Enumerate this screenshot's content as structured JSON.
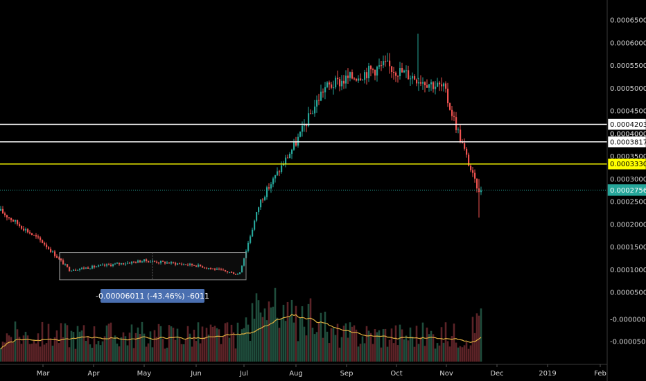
{
  "chart_data": {
    "type": "candlestick",
    "y_axis": {
      "position": "right",
      "range": [
        -6.5e-06,
        0.00068
      ],
      "tick_values": [
        0.00065,
        0.0006,
        0.00055,
        0.0005,
        0.00045,
        0.0004,
        0.00035,
        0.0003,
        0.00025,
        0.0002,
        0.00015,
        0.0001,
        5e-05
      ],
      "tick_labels": [
        "0.00065000",
        "0.00060000",
        "0.00055000",
        "0.00050000",
        "0.00045000",
        "0.00040000",
        "0.00035000",
        "0.00030000",
        "0.00025000",
        "0.00020000",
        "0.00015000",
        "0.00010000",
        "0.00005000"
      ],
      "volume_tick_labels": [
        "-0.00000000",
        "-0.00005000"
      ]
    },
    "x_axis": {
      "tick_labels": [
        "Mar",
        "Apr",
        "May",
        "Jun",
        "Jul",
        "Aug",
        "Sep",
        "Oct",
        "Nov",
        "Dec",
        "2019",
        "Feb"
      ]
    },
    "price_points": [
      {
        "month": "Feb",
        "price": 0.00023
      },
      {
        "month": "Mar",
        "price": 0.00016
      },
      {
        "month": "Apr",
        "price": 0.0001
      },
      {
        "month": "May",
        "price": 0.00012
      },
      {
        "month": "Jun",
        "price": 0.00011
      },
      {
        "month": "Jul",
        "price": 9e-05
      },
      {
        "month": "Jul",
        "price": 0.00025
      },
      {
        "month": "Aug",
        "price": 0.00038
      },
      {
        "month": "Aug",
        "price": 0.0005
      },
      {
        "month": "Sep",
        "price": 0.00052
      },
      {
        "month": "Oct",
        "price": 0.00055
      },
      {
        "month": "Nov",
        "price": 0.0005
      },
      {
        "month": "Nov",
        "price": 0.00027
      }
    ],
    "horizontal_levels": [
      {
        "label": "0.00042036",
        "value": 0.00042036,
        "color": "#ffffff",
        "style": "solid"
      },
      {
        "label": "0.00038179",
        "value": 0.00038179,
        "color": "#ffffff",
        "style": "solid"
      },
      {
        "label": "0.00033303",
        "value": 0.00033303,
        "color": "#ffff00",
        "style": "solid"
      },
      {
        "label": "0.00027560",
        "value": 0.0002756,
        "color": "#26a69a",
        "style": "dotted"
      }
    ],
    "partial_level_label": "0.00040000",
    "measure": {
      "label": "-0.00006011 (-43.46%) -6011",
      "range_low": 7.8e-05,
      "range_high": 0.000138,
      "color": "#4a6fb0"
    },
    "volume_ma_color": "#e0b040",
    "colors": {
      "up": "#26a69a",
      "down": "#ef5350",
      "background": "#000000"
    },
    "grid": false
  }
}
